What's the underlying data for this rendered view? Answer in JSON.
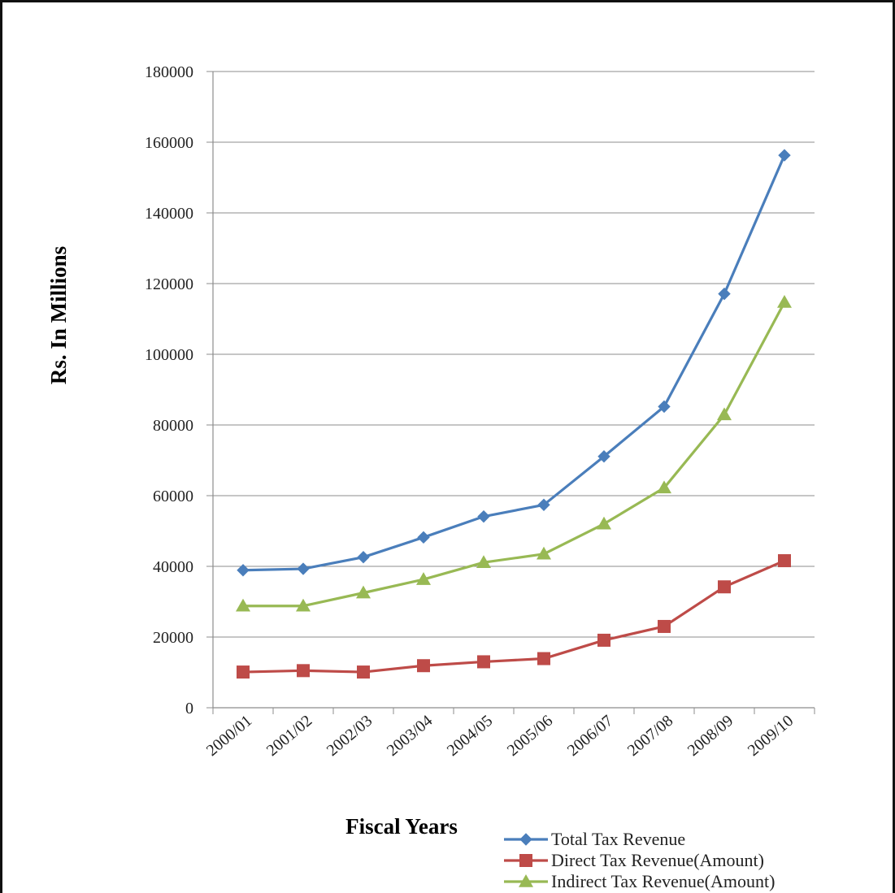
{
  "chart_data": {
    "type": "line",
    "title": "",
    "xlabel": "Fiscal Years",
    "ylabel": "Rs. In Millions",
    "categories": [
      "2000/01",
      "2001/02",
      "2002/03",
      "2003/04",
      "2004/05",
      "2005/06",
      "2006/07",
      "2007/08",
      "2008/09",
      "2009/10"
    ],
    "ylim": [
      0,
      180000
    ],
    "yticks": [
      0,
      20000,
      40000,
      60000,
      80000,
      100000,
      120000,
      140000,
      160000,
      180000
    ],
    "grid": true,
    "legend_position": "bottom-right",
    "series": [
      {
        "name": "Total Tax Revenue",
        "color": "#4a7ebb",
        "marker": "diamond",
        "values": [
          38900,
          39300,
          42600,
          48200,
          54100,
          57400,
          71100,
          85200,
          117100,
          156300
        ]
      },
      {
        "name": "Direct Tax Revenue(Amount)",
        "color": "#be4b48",
        "marker": "square",
        "values": [
          10100,
          10500,
          10100,
          11900,
          13000,
          13900,
          19100,
          23000,
          34200,
          41600
        ]
      },
      {
        "name": "Indirect Tax Revenue(Amount)",
        "color": "#98b954",
        "marker": "triangle",
        "values": [
          28800,
          28800,
          32500,
          36300,
          41100,
          43500,
          52000,
          62200,
          82900,
          114700
        ]
      }
    ]
  }
}
